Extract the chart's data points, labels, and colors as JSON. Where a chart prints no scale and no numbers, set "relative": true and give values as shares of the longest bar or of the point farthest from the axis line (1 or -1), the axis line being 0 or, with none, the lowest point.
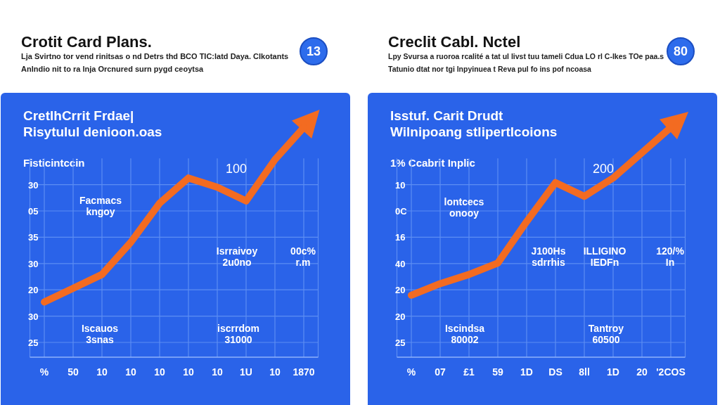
{
  "chart_data": [
    {
      "type": "line",
      "title": "Crotit Card Plans.",
      "subtitle": "Lja Svirtno tor vend rinitsas o nd Detrs thd BCO TIC:latd Daya. Clkotants\nAnlndio nit to ra lnja Orcnured surn pygd ceoytsa",
      "ylabel": "Fisticintccin",
      "annotations": [
        "13",
        "CretlhCrrit Frdae|\nRisytulul denioon.oas",
        "100",
        "Facmacs\nkngoy",
        "Isrraivoy\n2u0no",
        "00c%\nr.m",
        "Iscauos\n3snas",
        "iscrrdom\n31000",
        "30",
        "05",
        "35",
        "30",
        "20",
        "30",
        "25"
      ],
      "categories": [
        "%",
        "50",
        "10",
        "10",
        "10",
        "10",
        "10",
        "1U",
        "10",
        "1870"
      ],
      "values": [
        0.24,
        0.3,
        0.36,
        0.5,
        0.67,
        0.78,
        0.74,
        0.68,
        0.86,
        1
      ],
      "color": "#f36b21",
      "relative": true,
      "grid": true
    },
    {
      "type": "line",
      "title": "Creclit Cabl. Nctel",
      "subtitle": "Lpy Svursa a ruoroa rcalité a tat ul livst tuu tameli Cdua LO rl C-lkes TOe paa.s\nTatunio dtat nor tgi lnpyinuea t Reva pul fo ins pof ncoasa",
      "ylabel": "1% Ccabrit Inplic",
      "annotations": [
        "80",
        "Isstuf. Carit Drudt\nWilnipoang stlipertlcoions",
        "200",
        "lontcecs\nonooy",
        "J100Hs\nsdrrhis",
        "ILLIGINO\nIEDFn",
        "120/%\nIn",
        "Iscindsa\n80002",
        "Tantroy\n60500",
        "10",
        "0C",
        "16",
        "40",
        "20",
        "20",
        "25"
      ],
      "categories": [
        "%",
        "07",
        "£1",
        "59",
        "1D",
        "DS",
        "8ll",
        "1D",
        "20",
        "'2COS"
      ],
      "values": [
        0.27,
        0.32,
        0.36,
        0.41,
        0.59,
        0.76,
        0.7,
        0.78,
        0.89,
        1
      ],
      "color": "#f36b21",
      "relative": true,
      "grid": true
    }
  ]
}
